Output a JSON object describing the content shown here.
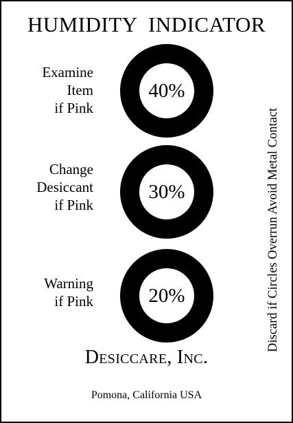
{
  "card": {
    "title": "HUMIDITY  INDICATOR",
    "side_note": "Discard if Circles Overrun Avoid Metal Contact",
    "indicators": [
      {
        "value": "40%",
        "label_lines": [
          "Examine",
          "Item",
          "if Pink"
        ]
      },
      {
        "value": "30%",
        "label_lines": [
          "Change",
          "Desiccant",
          "if Pink"
        ]
      },
      {
        "value": "20%",
        "label_lines": [
          "Warning",
          "if Pink"
        ]
      }
    ],
    "company": "Desiccare, Inc.",
    "location": "Pomona, California USA"
  }
}
